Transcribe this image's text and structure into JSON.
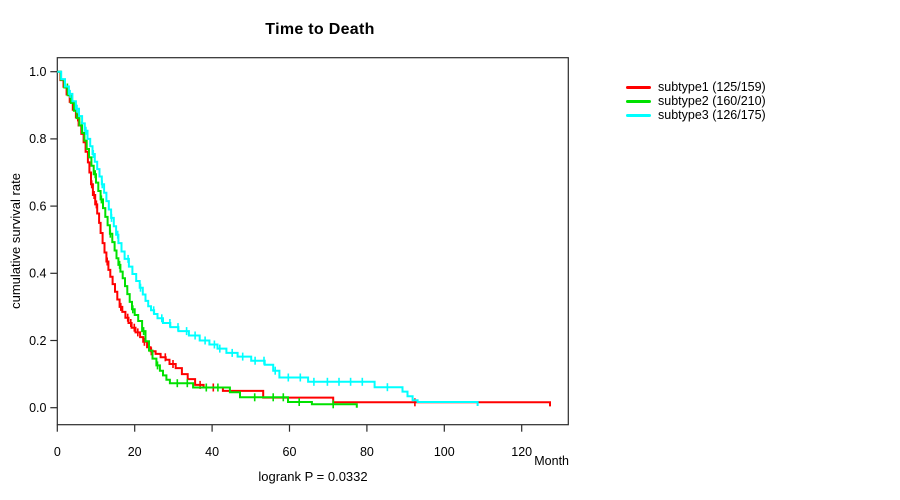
{
  "figure": {
    "title": "Time to Death",
    "footnote": "logrank P = 0.0332",
    "x_axis": {
      "label": "Month",
      "ticks": [
        0,
        20,
        40,
        60,
        80,
        100,
        120
      ]
    },
    "y_axis": {
      "label": "cumulative survival rate",
      "ticks": [
        0.0,
        0.2,
        0.4,
        0.6,
        0.8,
        1.0
      ]
    }
  },
  "legend": {
    "items": [
      {
        "label": "subtype1 (125/159)",
        "color": "#ff0000"
      },
      {
        "label": "subtype2 (160/210)",
        "color": "#00e100"
      },
      {
        "label": "subtype3 (126/175)",
        "color": "#00ffff"
      }
    ]
  },
  "chart_data": {
    "type": "line",
    "subtype": "kaplan-meier-step",
    "title": "Time to Death",
    "xlabel": "Month",
    "ylabel": "cumulative survival rate",
    "xlim": [
      0,
      132
    ],
    "ylim": [
      -0.04,
      1.04
    ],
    "grid": false,
    "legend_position": "right-outside",
    "annotation": "logrank P = 0.0332",
    "x_ticks": [
      0,
      20,
      40,
      60,
      80,
      100,
      120
    ],
    "y_ticks": [
      0.0,
      0.2,
      0.4,
      0.6,
      0.8,
      1.0
    ],
    "series": [
      {
        "name": "subtype1 (125/159)",
        "color": "#ff0000",
        "events_total": "125/159",
        "steps": [
          [
            0,
            1.0
          ],
          [
            0.8,
            0.975
          ],
          [
            1.6,
            0.955
          ],
          [
            2.4,
            0.932
          ],
          [
            3.2,
            0.91
          ],
          [
            4.0,
            0.887
          ],
          [
            4.8,
            0.864
          ],
          [
            5.5,
            0.84
          ],
          [
            6.2,
            0.815
          ],
          [
            6.8,
            0.79
          ],
          [
            7.3,
            0.762
          ],
          [
            7.9,
            0.73
          ],
          [
            8.3,
            0.7
          ],
          [
            8.7,
            0.665
          ],
          [
            9.2,
            0.633
          ],
          [
            9.8,
            0.605
          ],
          [
            10.3,
            0.578
          ],
          [
            10.8,
            0.55
          ],
          [
            11.2,
            0.52
          ],
          [
            11.7,
            0.49
          ],
          [
            12.2,
            0.462
          ],
          [
            12.7,
            0.435
          ],
          [
            13.2,
            0.41
          ],
          [
            13.7,
            0.39
          ],
          [
            14.3,
            0.368
          ],
          [
            14.9,
            0.345
          ],
          [
            15.5,
            0.322
          ],
          [
            16.1,
            0.3
          ],
          [
            16.8,
            0.285
          ],
          [
            17.6,
            0.268
          ],
          [
            18.4,
            0.252
          ],
          [
            19.2,
            0.238
          ],
          [
            20.2,
            0.224
          ],
          [
            21.4,
            0.21
          ],
          [
            22.2,
            0.196
          ],
          [
            23.2,
            0.18
          ],
          [
            24.1,
            0.168
          ],
          [
            25.4,
            0.16
          ],
          [
            26.7,
            0.15
          ],
          [
            28.0,
            0.143
          ],
          [
            29.0,
            0.13
          ],
          [
            30.6,
            0.118
          ],
          [
            32.2,
            0.1
          ],
          [
            33.7,
            0.085
          ],
          [
            35.6,
            0.068
          ],
          [
            37.8,
            0.06
          ],
          [
            42.8,
            0.05
          ],
          [
            53.2,
            0.03
          ],
          [
            71.3,
            0.016
          ],
          [
            127.3,
            0.004
          ]
        ],
        "censor_times": [
          5.3,
          8.9,
          9.5,
          10.1,
          12.9,
          16.4,
          18.2,
          19.0,
          19.9,
          20.8,
          22.5,
          24.3,
          27.9,
          29.9,
          36.9,
          40.3,
          92.4
        ]
      },
      {
        "name": "subtype2 (160/210)",
        "color": "#00e100",
        "events_total": "160/210",
        "steps": [
          [
            0,
            1.0
          ],
          [
            0.9,
            0.976
          ],
          [
            1.8,
            0.953
          ],
          [
            2.7,
            0.93
          ],
          [
            3.5,
            0.907
          ],
          [
            4.3,
            0.884
          ],
          [
            5.0,
            0.862
          ],
          [
            5.7,
            0.84
          ],
          [
            6.4,
            0.818
          ],
          [
            7.0,
            0.795
          ],
          [
            7.6,
            0.77
          ],
          [
            8.2,
            0.745
          ],
          [
            8.8,
            0.72
          ],
          [
            9.4,
            0.695
          ],
          [
            10.0,
            0.67
          ],
          [
            10.6,
            0.645
          ],
          [
            11.2,
            0.62
          ],
          [
            11.8,
            0.594
          ],
          [
            12.4,
            0.568
          ],
          [
            13.0,
            0.543
          ],
          [
            13.6,
            0.518
          ],
          [
            14.2,
            0.493
          ],
          [
            14.8,
            0.468
          ],
          [
            15.3,
            0.445
          ],
          [
            15.8,
            0.425
          ],
          [
            16.3,
            0.405
          ],
          [
            16.9,
            0.385
          ],
          [
            17.5,
            0.362
          ],
          [
            18.1,
            0.338
          ],
          [
            18.7,
            0.315
          ],
          [
            19.3,
            0.293
          ],
          [
            20.0,
            0.276
          ],
          [
            20.9,
            0.258
          ],
          [
            21.9,
            0.228
          ],
          [
            22.8,
            0.198
          ],
          [
            23.7,
            0.17
          ],
          [
            24.6,
            0.146
          ],
          [
            25.6,
            0.126
          ],
          [
            26.5,
            0.11
          ],
          [
            27.3,
            0.096
          ],
          [
            28.2,
            0.083
          ],
          [
            29.1,
            0.073
          ],
          [
            35.1,
            0.06
          ],
          [
            44.6,
            0.046
          ],
          [
            47.2,
            0.031
          ],
          [
            59.6,
            0.017
          ],
          [
            65.8,
            0.01
          ],
          [
            77.4,
            0.0
          ]
        ],
        "censor_times": [
          2.6,
          6.3,
          9.8,
          11.4,
          13.7,
          16.1,
          19.5,
          22.3,
          25.9,
          31.0,
          33.6,
          38.5,
          41.5,
          51.0,
          55.8,
          58.4,
          62.5,
          71.3
        ]
      },
      {
        "name": "subtype3 (126/175)",
        "color": "#00ffff",
        "events_total": "126/175",
        "steps": [
          [
            0,
            1.0
          ],
          [
            1.0,
            0.978
          ],
          [
            2.0,
            0.956
          ],
          [
            3.0,
            0.934
          ],
          [
            3.9,
            0.912
          ],
          [
            4.8,
            0.89
          ],
          [
            5.6,
            0.868
          ],
          [
            6.4,
            0.846
          ],
          [
            7.1,
            0.824
          ],
          [
            7.8,
            0.8
          ],
          [
            8.5,
            0.778
          ],
          [
            9.1,
            0.755
          ],
          [
            9.7,
            0.732
          ],
          [
            10.3,
            0.71
          ],
          [
            10.9,
            0.688
          ],
          [
            11.5,
            0.665
          ],
          [
            12.1,
            0.64
          ],
          [
            12.7,
            0.615
          ],
          [
            13.3,
            0.59
          ],
          [
            13.9,
            0.565
          ],
          [
            14.6,
            0.54
          ],
          [
            15.2,
            0.515
          ],
          [
            15.8,
            0.49
          ],
          [
            16.6,
            0.465
          ],
          [
            17.4,
            0.443
          ],
          [
            18.5,
            0.42
          ],
          [
            19.4,
            0.398
          ],
          [
            20.4,
            0.377
          ],
          [
            21.3,
            0.357
          ],
          [
            22.1,
            0.337
          ],
          [
            22.8,
            0.318
          ],
          [
            23.5,
            0.302
          ],
          [
            24.2,
            0.29
          ],
          [
            25.0,
            0.279
          ],
          [
            25.9,
            0.266
          ],
          [
            27.3,
            0.252
          ],
          [
            29.2,
            0.24
          ],
          [
            31.3,
            0.228
          ],
          [
            34.0,
            0.215
          ],
          [
            36.8,
            0.2
          ],
          [
            39.3,
            0.188
          ],
          [
            41.4,
            0.176
          ],
          [
            43.7,
            0.163
          ],
          [
            46.6,
            0.152
          ],
          [
            50.1,
            0.14
          ],
          [
            53.6,
            0.128
          ],
          [
            55.8,
            0.11
          ],
          [
            57.4,
            0.09
          ],
          [
            64.8,
            0.077
          ],
          [
            82.0,
            0.061
          ],
          [
            89.2,
            0.048
          ],
          [
            90.5,
            0.034
          ],
          [
            91.8,
            0.022
          ],
          [
            93.1,
            0.017
          ],
          [
            108.6,
            0.005
          ]
        ],
        "censor_times": [
          3.3,
          5.1,
          7.4,
          9.3,
          11.6,
          14.0,
          15.6,
          18.3,
          21.5,
          24.9,
          27.0,
          29.1,
          31.2,
          33.4,
          35.6,
          38.2,
          40.6,
          42.0,
          45.2,
          47.9,
          51.1,
          53.4,
          56.3,
          59.7,
          62.8,
          66.3,
          69.8,
          72.8,
          75.8,
          78.8,
          85.3
        ]
      }
    ]
  }
}
